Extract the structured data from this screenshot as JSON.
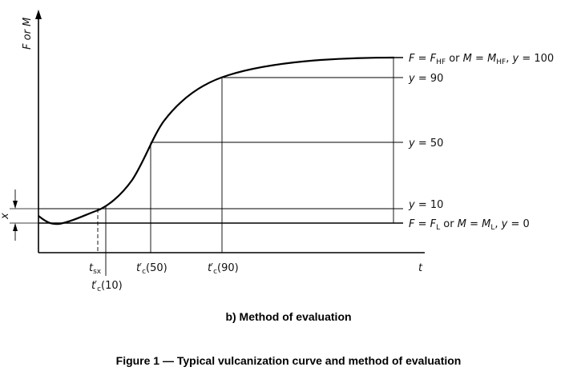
{
  "axes": {
    "y_label": "F or M",
    "x_label": "t"
  },
  "levels": {
    "top": {
      "text": "F = F_HF or M = M_HF, y = 100",
      "y": 100
    },
    "y90": {
      "text": "y = 90",
      "y": 90
    },
    "y50": {
      "text": "y = 50",
      "y": 50
    },
    "y10": {
      "text": "y = 10",
      "y": 10
    },
    "bottom": {
      "text": "F = F_L or M = M_L, y = 0",
      "y": 0
    }
  },
  "markers": {
    "x_dimension": "x",
    "t_sx": "t_sx",
    "tc10": "t'_c(10)",
    "tc50": "t'_c(50)",
    "tc90": "t'_c(90)"
  },
  "captions": {
    "sub": "b) Method of evaluation",
    "figure": "Figure 1 — Typical vulcanization curve and method of evaluation"
  }
}
